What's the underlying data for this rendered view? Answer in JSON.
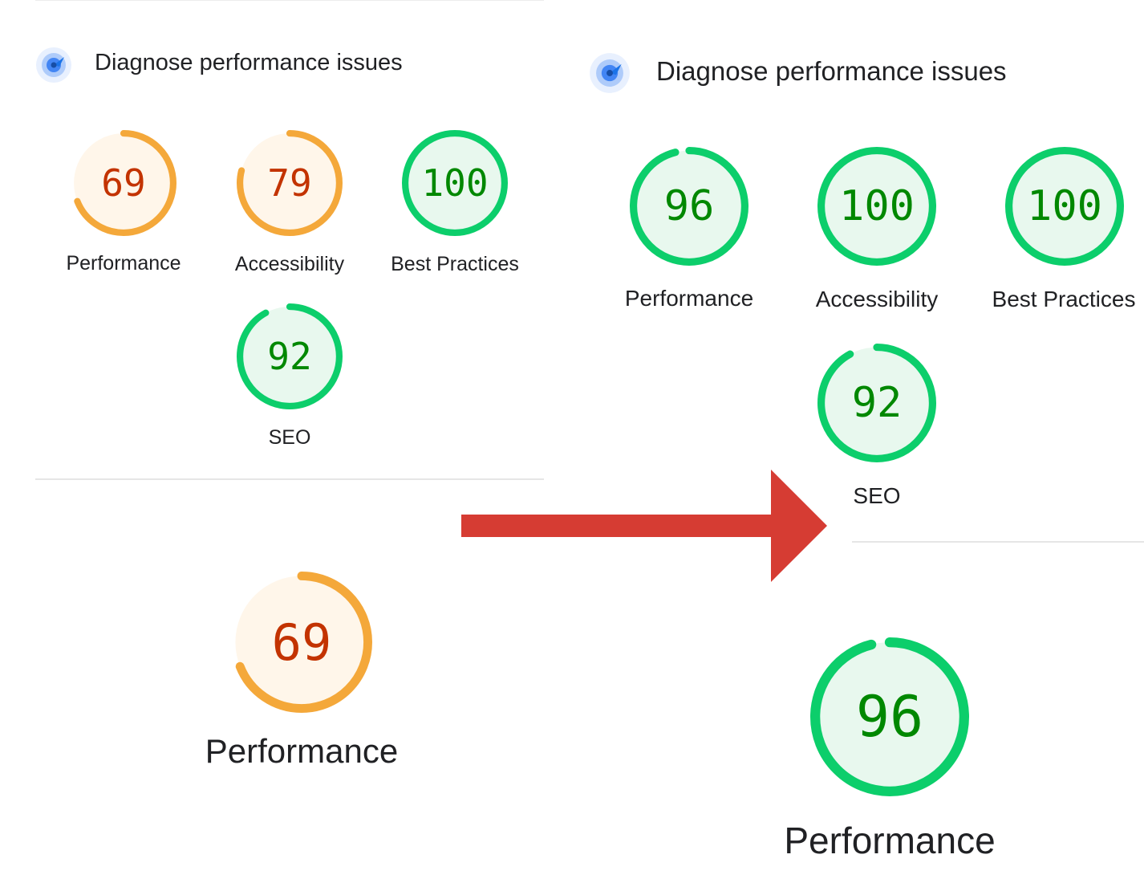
{
  "colors": {
    "fail_stroke": "#f4a83a",
    "fail_fill": "#fff6ea",
    "fail_text": "#c33300",
    "pass_stroke": "#0cce6b",
    "pass_fill": "#e8f8ee",
    "pass_text": "#008800",
    "arrow": "#d63c33"
  },
  "before": {
    "header_title": "Diagnose performance issues",
    "icon": "lighthouse-icon",
    "scores": [
      {
        "label": "Performance",
        "value": "69",
        "percent": 69
      },
      {
        "label": "Accessibility",
        "value": "79",
        "percent": 79
      },
      {
        "label": "Best Practices",
        "value": "100",
        "percent": 100
      },
      {
        "label": "SEO",
        "value": "92",
        "percent": 92
      }
    ],
    "big_score": {
      "label": "Performance",
      "value": "69",
      "percent": 69
    }
  },
  "after": {
    "header_title": "Diagnose performance issues",
    "icon": "lighthouse-icon",
    "scores": [
      {
        "label": "Performance",
        "value": "96",
        "percent": 96
      },
      {
        "label": "Accessibility",
        "value": "100",
        "percent": 100
      },
      {
        "label": "Best Practices",
        "value": "100",
        "percent": 100
      },
      {
        "label": "SEO",
        "value": "92",
        "percent": 92
      }
    ],
    "big_score": {
      "label": "Performance",
      "value": "96",
      "percent": 96
    }
  },
  "arrow_icon": "right-arrow-icon"
}
